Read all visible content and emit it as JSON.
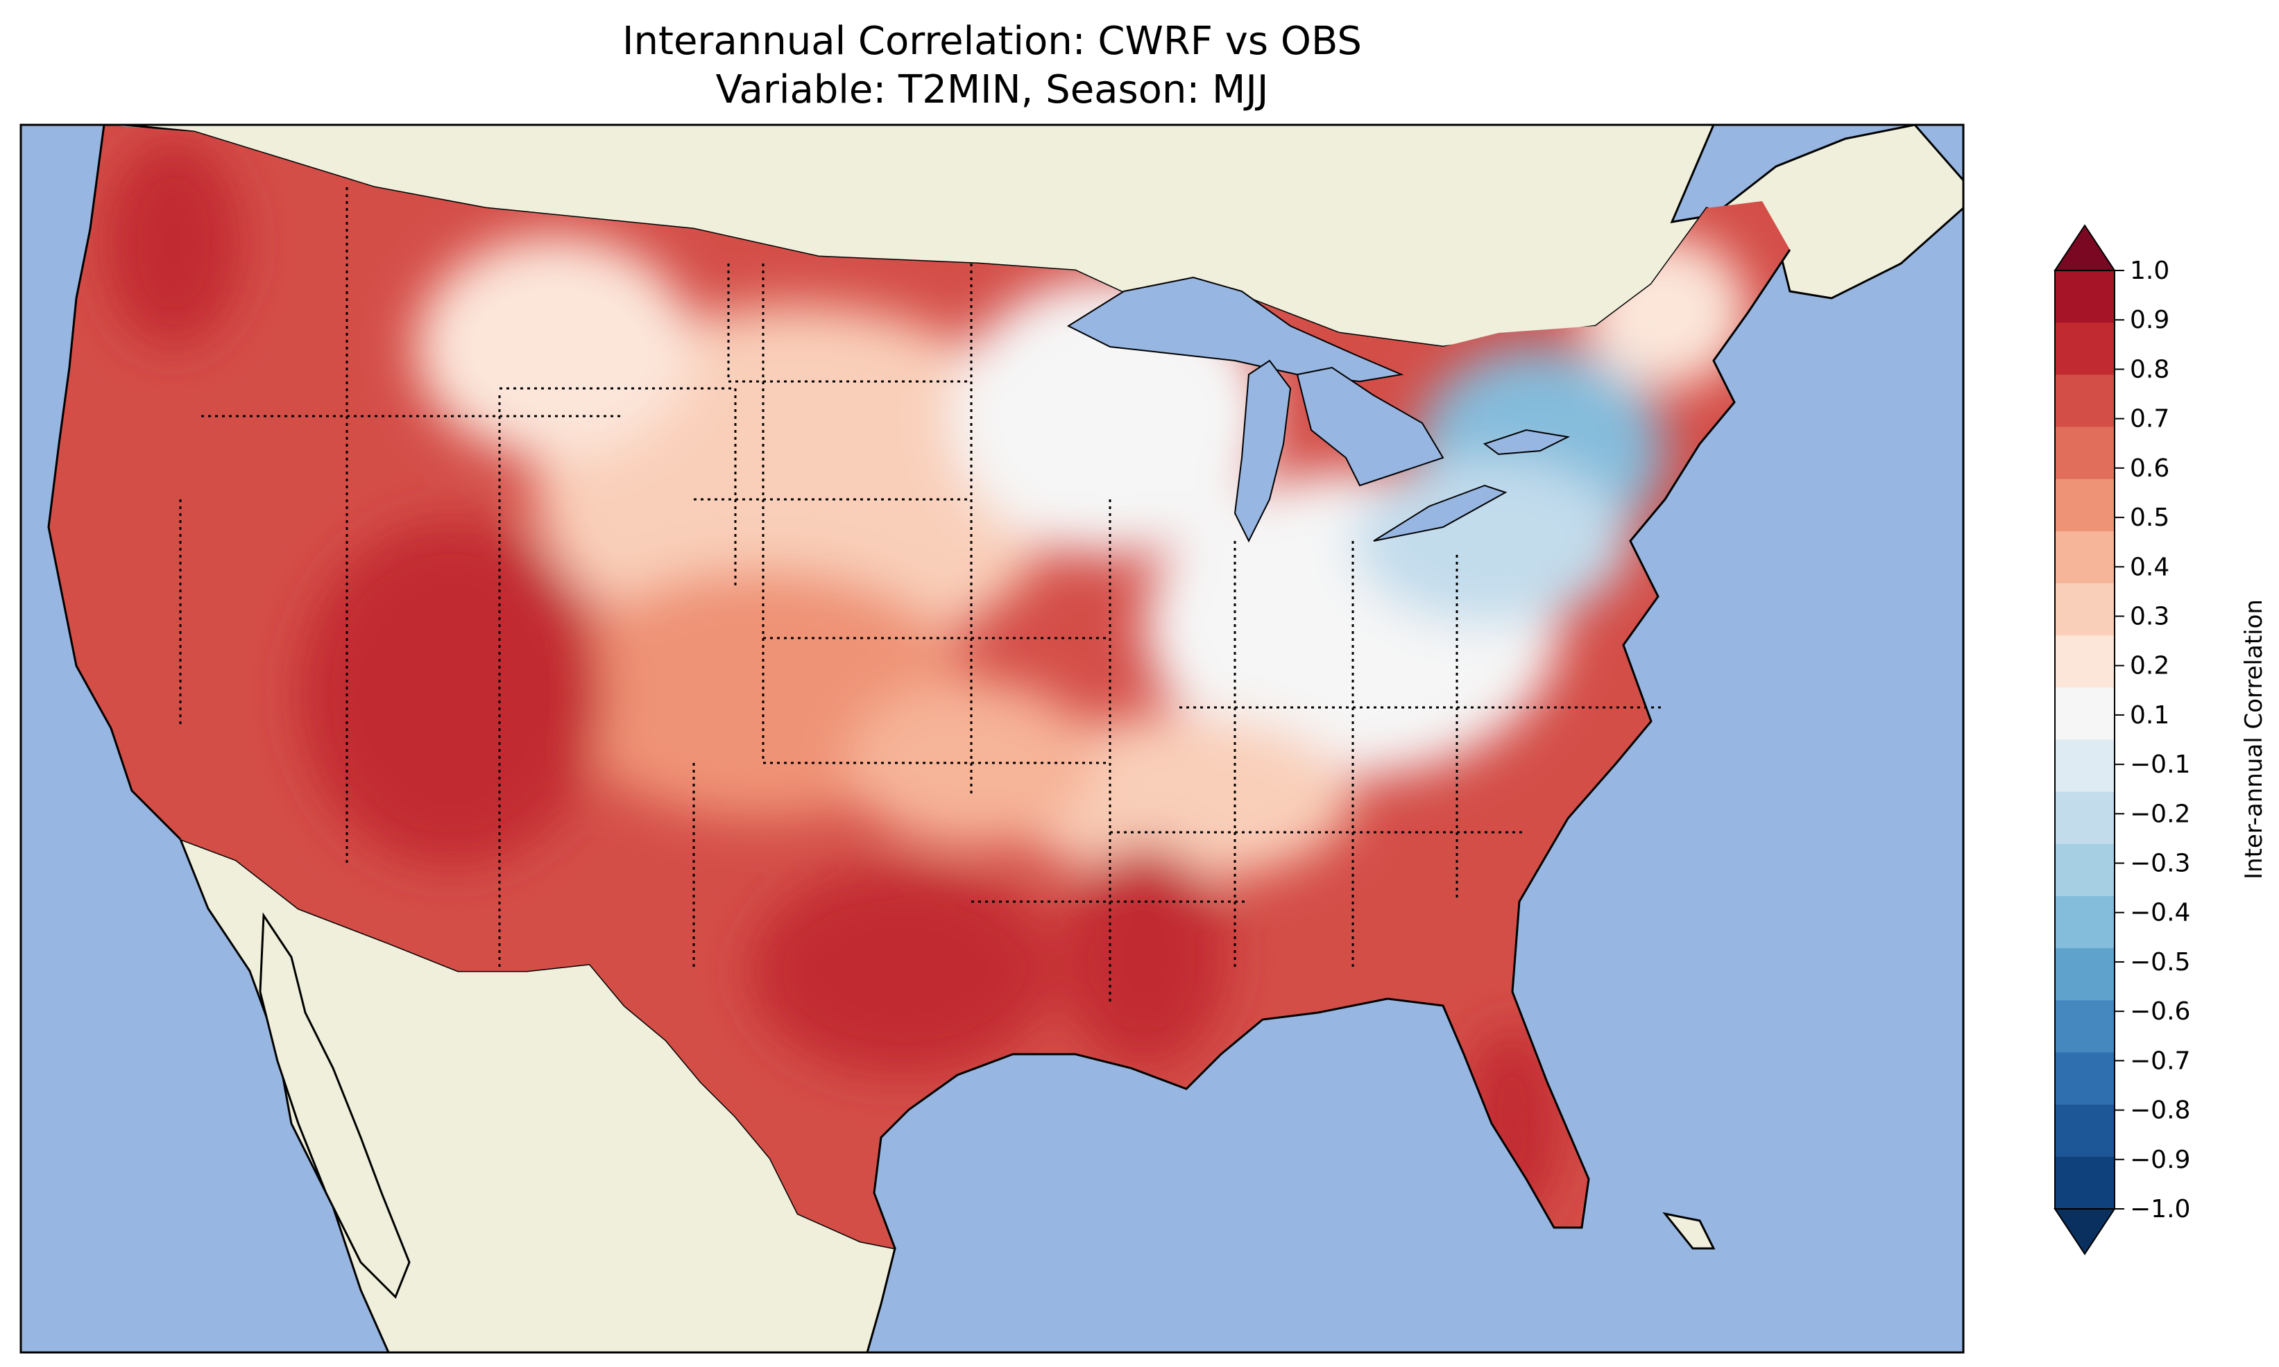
{
  "title_line1": "Interannual Correlation: CWRF vs OBS",
  "title_line2": "Variable: T2MIN, Season: MJJ",
  "colorbar": {
    "label": "Inter-annual Correlation",
    "ticks": [
      "1.0",
      "0.9",
      "0.8",
      "0.7",
      "0.6",
      "0.5",
      "0.4",
      "0.3",
      "0.2",
      "0.1",
      "−0.1",
      "−0.2",
      "−0.3",
      "−0.4",
      "−0.5",
      "−0.6",
      "−0.7",
      "−0.8",
      "−0.9",
      "−1.0"
    ],
    "colors_top_to_bottom": [
      "#a51427",
      "#c22a32",
      "#d44e48",
      "#e06e5a",
      "#ef9376",
      "#f6b498",
      "#f9cfb9",
      "#fce6da",
      "#f6f6f6",
      "#dfebf3",
      "#c2dcec",
      "#a7cfe3",
      "#84bcdb",
      "#5fa3cd",
      "#4488bf",
      "#2f6fb0",
      "#1d5797",
      "#0f427c"
    ],
    "extend_max_color": "#7a0822",
    "extend_min_color": "#0a3060"
  },
  "map_colors": {
    "ocean": "#97b6e1",
    "land": "#efefdb",
    "lakes": "#97b6e1"
  },
  "legend_scale": "diverging RdBu_r, -1.0 to 1.0, step 0.1"
}
